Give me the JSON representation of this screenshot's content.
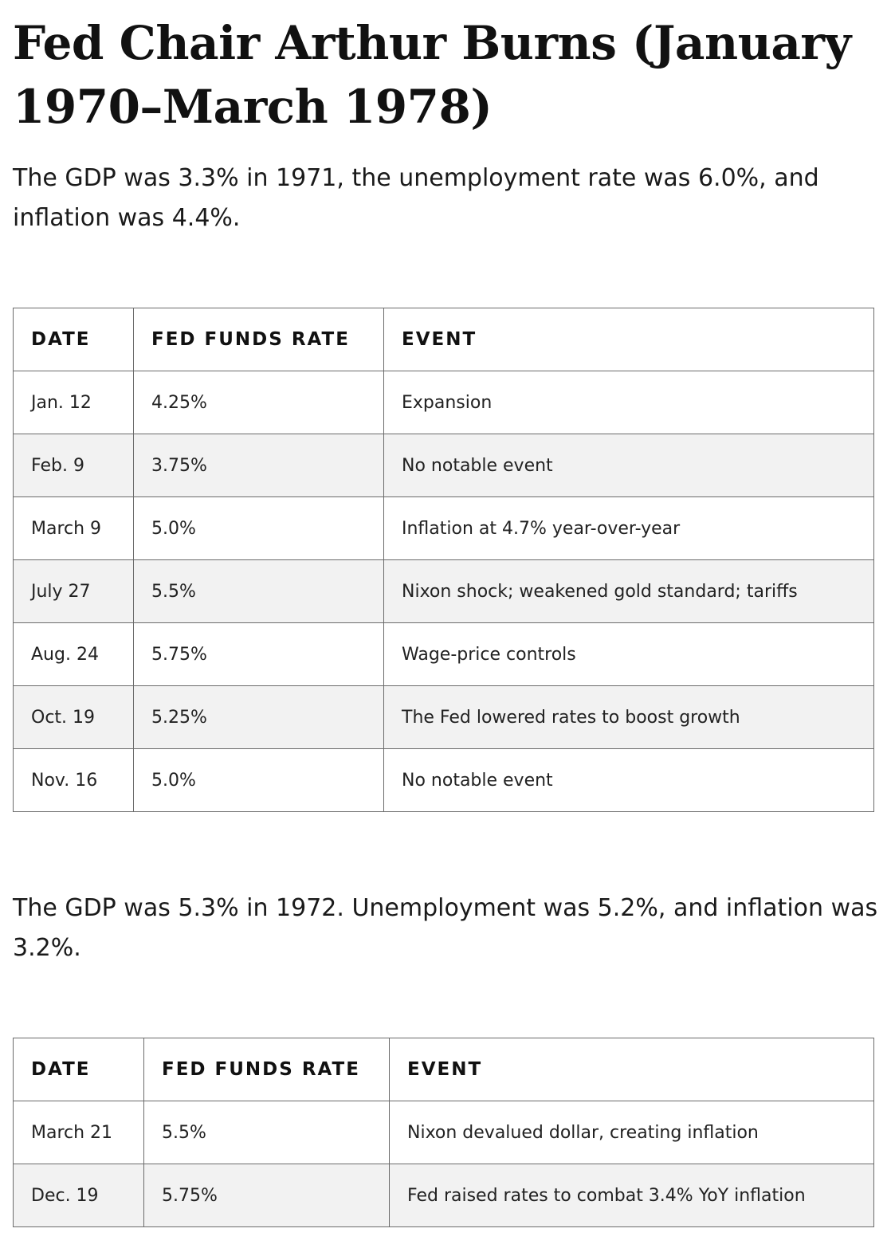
{
  "article": {
    "title": "Fed Chair Arthur Burns (January 1970–March 1978)",
    "paragraphs": [
      "The GDP was 3.3% in 1971, the unemployment rate was 6.0%, and inflation was 4.4%.",
      "The GDP was 5.3% in 1972. Unemployment was 5.2%, and inflation was 3.2%."
    ]
  },
  "tables": [
    {
      "headers": [
        "DATE",
        "FED FUNDS RATE",
        "EVENT"
      ],
      "rows": [
        [
          "Jan. 12",
          "4.25%",
          "Expansion"
        ],
        [
          "Feb. 9",
          "3.75%",
          "No notable event"
        ],
        [
          "March 9",
          "5.0%",
          "Inflation at 4.7% year-over-year"
        ],
        [
          "July 27",
          "5.5%",
          "Nixon shock; weakened gold standard; tariffs"
        ],
        [
          "Aug. 24",
          "5.75%",
          "Wage-price controls"
        ],
        [
          "Oct. 19",
          "5.25%",
          "The Fed lowered rates to boost growth"
        ],
        [
          "Nov. 16",
          "5.0%",
          "No notable event"
        ]
      ]
    },
    {
      "headers": [
        "DATE",
        "FED FUNDS RATE",
        "EVENT"
      ],
      "rows": [
        [
          "March 21",
          "5.5%",
          "Nixon devalued dollar, creating inflation"
        ],
        [
          "Dec. 19",
          "5.75%",
          "Fed raised rates to combat 3.4% YoY inflation"
        ]
      ]
    }
  ]
}
